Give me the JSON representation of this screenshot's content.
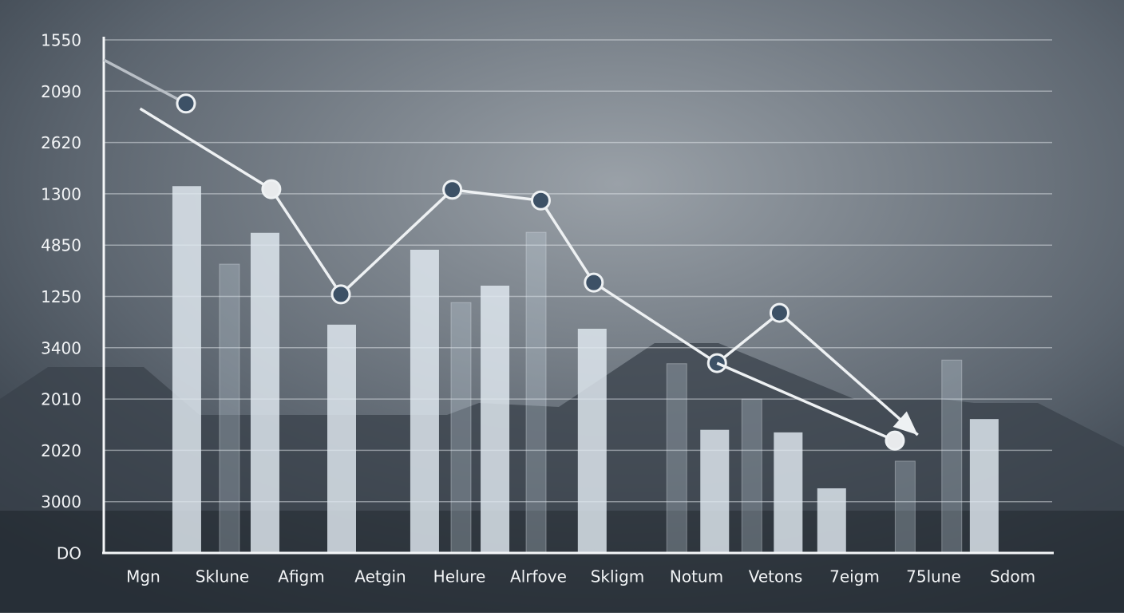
{
  "chart_data": {
    "type": "combo",
    "xlim": [
      -0.5,
      11.5
    ],
    "xticks": [
      {
        "value": 0,
        "label": "Mgn"
      },
      {
        "value": 1,
        "label": "Sklune"
      },
      {
        "value": 2,
        "label": "Afigm"
      },
      {
        "value": 3,
        "label": "Aetgin"
      },
      {
        "value": 4,
        "label": "Helure"
      },
      {
        "value": 5,
        "label": "Alrfove"
      },
      {
        "value": 6,
        "label": "Skligm"
      },
      {
        "value": 7,
        "label": "Notum"
      },
      {
        "value": 8,
        "label": "Vetons"
      },
      {
        "value": 9,
        "label": "7eigm"
      },
      {
        "value": 10,
        "label": "75lune"
      },
      {
        "value": 11,
        "label": "Sdom"
      }
    ],
    "ylim": [
      0,
      10
    ],
    "yticks": [
      {
        "value": 10,
        "label": "1550"
      },
      {
        "value": 9,
        "label": "2090"
      },
      {
        "value": 8,
        "label": "2620"
      },
      {
        "value": 7,
        "label": "1300"
      },
      {
        "value": 6,
        "label": "4850"
      },
      {
        "value": 5,
        "label": "1250"
      },
      {
        "value": 4,
        "label": "3400"
      },
      {
        "value": 3,
        "label": "2010"
      },
      {
        "value": 2,
        "label": "2020"
      },
      {
        "value": 1,
        "label": "3000"
      },
      {
        "value": 0,
        "label": "DO"
      }
    ],
    "grid": true,
    "series": [
      {
        "type": "bar",
        "color": "rgba(226,234,241,0.82)",
        "x": [
          0.55,
          1.54,
          2.51,
          3.56,
          4.45,
          5.68,
          7.23,
          8.16,
          8.71,
          10.64
        ],
        "values": [
          7.15,
          6.24,
          4.45,
          5.91,
          5.21,
          4.37,
          2.4,
          2.35,
          1.26,
          2.61
        ]
      },
      {
        "type": "bar",
        "color": "rgba(210,222,232,0.28)",
        "x": [
          1.09,
          4.02,
          4.97,
          6.75,
          7.7,
          9.64,
          10.23
        ],
        "values": [
          5.63,
          4.88,
          6.25,
          3.69,
          3.0,
          1.79,
          3.76
        ]
      },
      {
        "type": "line",
        "color": "#b9bfc6",
        "x": [
          -0.5,
          0.54
        ],
        "values": [
          9.61,
          8.76
        ],
        "markers": [
          null,
          "#3d5166"
        ]
      },
      {
        "type": "line",
        "color": "#eef1f3",
        "arrow": true,
        "x": [
          -0.04,
          1.62,
          2.5,
          3.91,
          5.03,
          5.7,
          7.26,
          8.05,
          9.8
        ],
        "values": [
          8.66,
          7.09,
          5.04,
          7.08,
          6.87,
          5.27,
          3.7,
          4.68,
          2.3
        ],
        "markers": [
          null,
          "#e8eaec",
          "#3d5166",
          "#3d5166",
          "#3d5166",
          "#3d5166",
          "#3d5166",
          "#3d5166",
          null
        ]
      },
      {
        "type": "line",
        "color": "#eef1f3",
        "x": [
          7.26,
          9.51
        ],
        "values": [
          3.7,
          2.19
        ],
        "markers": [
          null,
          "#e8eaec"
        ]
      }
    ]
  }
}
